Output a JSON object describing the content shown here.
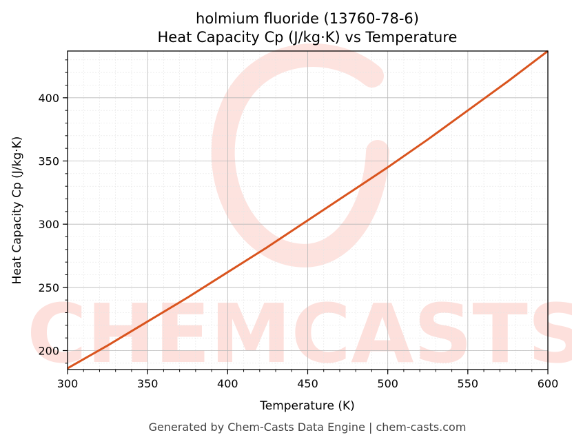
{
  "chart_data": {
    "type": "line",
    "title": "holmium fluoride (13760-78-6)",
    "subtitle": "Heat Capacity Cp (J/kg·K) vs Temperature",
    "xlabel": "Temperature (K)",
    "ylabel": "Heat Capacity Cp (J/kg·K)",
    "xlim": [
      300,
      600
    ],
    "ylim": [
      185,
      437
    ],
    "x_ticks": [
      300,
      350,
      400,
      450,
      500,
      550,
      600
    ],
    "y_ticks": [
      200,
      250,
      300,
      350,
      400
    ],
    "grid": true,
    "series": [
      {
        "color": "#d9541e",
        "x": [
          300,
          325,
          350,
          375,
          400,
          425,
          450,
          475,
          500,
          525,
          550,
          575,
          600
        ],
        "y": [
          186,
          204,
          223,
          242,
          262,
          282,
          303,
          324,
          345,
          367,
          390,
          413,
          437
        ]
      }
    ]
  },
  "watermark": {
    "text": "CHEMCASTS",
    "color": "#fde0dc"
  },
  "footer": "Generated by Chem-Casts Data Engine | chem-casts.com"
}
